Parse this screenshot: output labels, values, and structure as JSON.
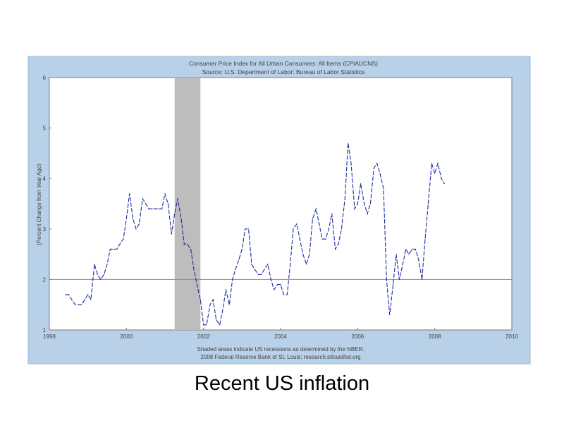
{
  "slide": {
    "caption": "Recent US inflation"
  },
  "colors": {
    "frame": "#b8d0e8",
    "line": "#1a2aa0",
    "recession": "#bdbdbd",
    "zero_line": "#8a8a8a",
    "text": "#444444"
  },
  "chart_data": {
    "type": "line",
    "title": "Consumer Price Index for All Urban Consumers: All Items (CPIAUCNS)",
    "subtitle": "Source: U.S. Department of Labor: Bureau of Labor Statistics",
    "ylabel": "(Percent Change from Year Ago)",
    "xlabel": "",
    "footer": [
      "Shaded areas indicate US recessions as determined by the NBER.",
      "2008 Federal Reserve Bank of St. Louis: research.stlouisfed.org"
    ],
    "xlim": [
      1998,
      2010
    ],
    "ylim": [
      1,
      6
    ],
    "x_ticks": [
      "1998",
      "2000",
      "2002",
      "2004",
      "2006",
      "2008",
      "2010"
    ],
    "y_ticks": [
      "1",
      "2",
      "3",
      "4",
      "5",
      "6"
    ],
    "grid": false,
    "legend": "none",
    "reference_line_y": 2,
    "recession": {
      "start": 2001.25,
      "end": 2001.92
    },
    "series": [
      {
        "x": [
          1998.42,
          1998.5,
          1998.58,
          1998.67,
          1998.75,
          1998.83,
          1998.92,
          1999.0,
          1999.08,
          1999.17,
          1999.25,
          1999.33,
          1999.42,
          1999.5,
          1999.58,
          1999.67,
          1999.75,
          1999.83,
          1999.92,
          2000.0,
          2000.08,
          2000.17,
          2000.25,
          2000.33,
          2000.42,
          2000.5,
          2000.58,
          2000.67,
          2000.75,
          2000.83,
          2000.92,
          2001.0,
          2001.08,
          2001.17,
          2001.25,
          2001.33,
          2001.42,
          2001.5,
          2001.58,
          2001.67,
          2001.75,
          2001.83,
          2001.92,
          2002.0,
          2002.08,
          2002.17,
          2002.25,
          2002.33,
          2002.42,
          2002.5,
          2002.58,
          2002.67,
          2002.75,
          2002.83,
          2002.92,
          2003.0,
          2003.08,
          2003.17,
          2003.25,
          2003.33,
          2003.42,
          2003.5,
          2003.58,
          2003.67,
          2003.75,
          2003.83,
          2003.92,
          2004.0,
          2004.08,
          2004.17,
          2004.25,
          2004.33,
          2004.42,
          2004.5,
          2004.58,
          2004.67,
          2004.75,
          2004.83,
          2004.92,
          2005.0,
          2005.08,
          2005.17,
          2005.25,
          2005.33,
          2005.42,
          2005.5,
          2005.58,
          2005.67,
          2005.75,
          2005.83,
          2005.92,
          2006.0,
          2006.08,
          2006.17,
          2006.25,
          2006.33,
          2006.42,
          2006.5,
          2006.58,
          2006.67,
          2006.75,
          2006.83,
          2006.92,
          2007.0,
          2007.08,
          2007.17,
          2007.25,
          2007.33,
          2007.42,
          2007.5,
          2007.58,
          2007.67,
          2007.75,
          2007.83,
          2007.92,
          2008.0,
          2008.08,
          2008.17,
          2008.25
        ],
        "values": [
          1.7,
          1.7,
          1.6,
          1.5,
          1.5,
          1.5,
          1.6,
          1.7,
          1.6,
          2.3,
          2.1,
          2.0,
          2.1,
          2.3,
          2.6,
          2.6,
          2.6,
          2.7,
          2.8,
          3.2,
          3.7,
          3.2,
          3.0,
          3.1,
          3.6,
          3.5,
          3.4,
          3.4,
          3.4,
          3.4,
          3.4,
          3.7,
          3.5,
          2.9,
          3.3,
          3.6,
          3.2,
          2.7,
          2.7,
          2.6,
          2.2,
          1.9,
          1.6,
          1.1,
          1.1,
          1.5,
          1.6,
          1.2,
          1.1,
          1.4,
          1.8,
          1.5,
          2.0,
          2.2,
          2.4,
          2.6,
          3.0,
          3.0,
          2.3,
          2.2,
          2.1,
          2.1,
          2.2,
          2.3,
          2.0,
          1.8,
          1.9,
          1.9,
          1.7,
          1.7,
          2.3,
          3.0,
          3.1,
          2.8,
          2.5,
          2.3,
          2.5,
          3.2,
          3.4,
          3.1,
          2.8,
          2.8,
          3.0,
          3.3,
          2.6,
          2.7,
          3.0,
          3.6,
          4.7,
          4.3,
          3.4,
          3.5,
          3.9,
          3.5,
          3.3,
          3.5,
          4.2,
          4.3,
          4.1,
          3.8,
          2.0,
          1.3,
          1.9,
          2.5,
          2.0,
          2.3,
          2.6,
          2.5,
          2.6,
          2.6,
          2.4,
          2.0,
          2.8,
          3.5,
          4.3,
          4.1,
          4.3,
          4.0,
          3.9
        ]
      }
    ]
  }
}
